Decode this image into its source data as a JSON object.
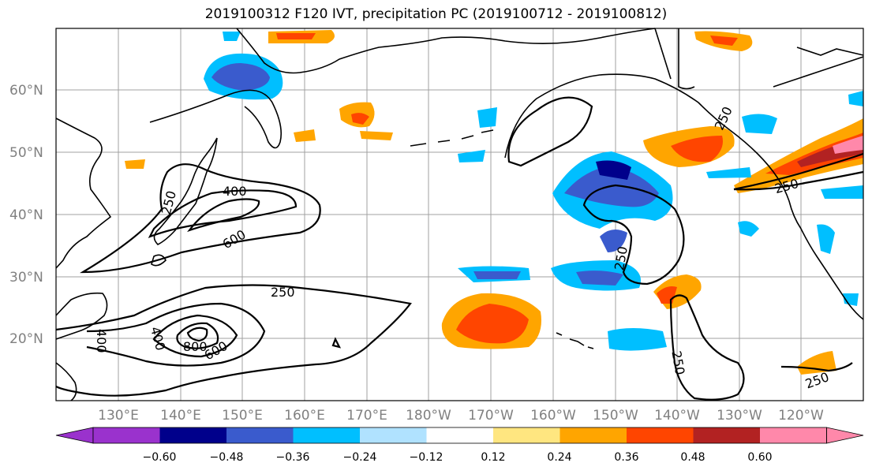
{
  "title": "2019100312 F120 IVT, precipitation PC (2019100712 - 2019100812)",
  "latitudes": [
    "60°N",
    "50°N",
    "40°N",
    "30°N",
    "20°N"
  ],
  "longitudes": [
    "130°E",
    "140°E",
    "150°E",
    "160°E",
    "170°E",
    "180°W",
    "170°W",
    "160°W",
    "150°W",
    "140°W",
    "130°W",
    "120°W"
  ],
  "contour_labels": [
    "400",
    "600",
    "250",
    "250",
    "400",
    "400",
    "800",
    "600",
    "250",
    "250",
    "250",
    "250",
    "250"
  ],
  "colorbar": {
    "ticks": [
      "−0.60",
      "−0.48",
      "−0.36",
      "−0.24",
      "−0.12",
      "0.12",
      "0.24",
      "0.36",
      "0.48",
      "0.60"
    ],
    "colors": [
      "#9a32cd",
      "#00008b",
      "#3a5bcd",
      "#00bfff",
      "#b0e2ff",
      "#ffffff",
      "#ffe680",
      "#ffa500",
      "#ff4500",
      "#b22222",
      "#ff88aa",
      "#ff88aa"
    ]
  }
}
